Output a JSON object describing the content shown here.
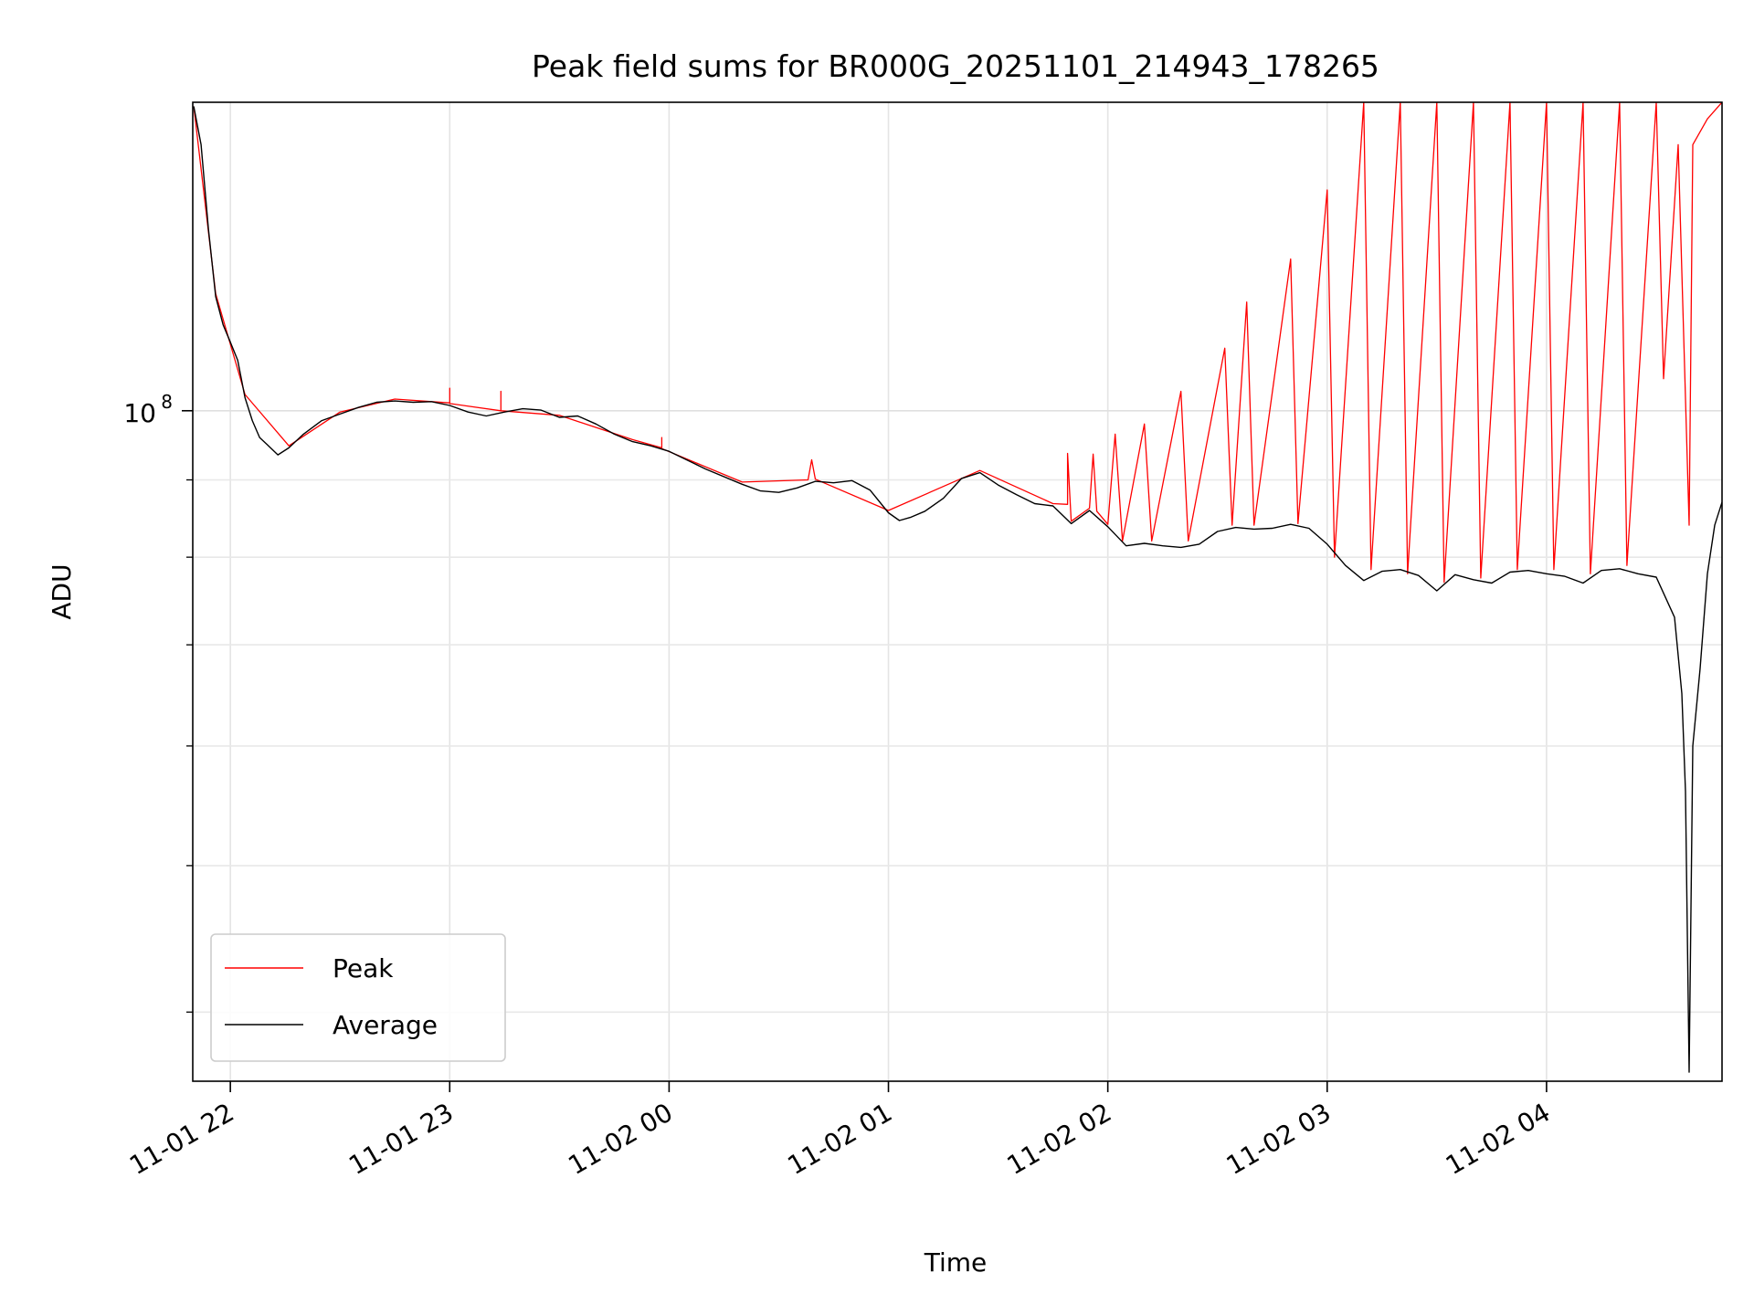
{
  "chart_data": {
    "type": "line",
    "title": "Peak field sums for BR000G_20251101_214943_178265",
    "xlabel": "Time",
    "ylabel": "ADU",
    "yscale": "log",
    "grid": true,
    "legend_position": "lower-left",
    "xlim": [
      "2025-11-01 21:49:43",
      "2025-11-02 04:48:00"
    ],
    "ylim": [
      36000000,
      160000000
    ],
    "xticks": [
      {
        "t": "2025-11-01 22:00",
        "label": "11-01 22"
      },
      {
        "t": "2025-11-01 23:00",
        "label": "11-01 23"
      },
      {
        "t": "2025-11-02 00:00",
        "label": "11-02 00"
      },
      {
        "t": "2025-11-02 01:00",
        "label": "11-02 01"
      },
      {
        "t": "2025-11-02 02:00",
        "label": "11-02 02"
      },
      {
        "t": "2025-11-02 03:00",
        "label": "11-02 03"
      },
      {
        "t": "2025-11-02 04:00",
        "label": "11-02 04"
      }
    ],
    "ytick_major": {
      "value": 100000000,
      "label": "10",
      "exponent": "8"
    },
    "ytick_minor": [
      40000000,
      50000000,
      60000000,
      70000000,
      80000000,
      90000000
    ],
    "series": [
      {
        "name": "Average",
        "color": "#000000",
        "points": [
          [
            "2025-11-01 21:50",
            159000000
          ],
          [
            "2025-11-01 21:52",
            150000000
          ],
          [
            "2025-11-01 21:54",
            132000000
          ],
          [
            "2025-11-01 21:56",
            119000000
          ],
          [
            "2025-11-01 21:58",
            114000000
          ],
          [
            "2025-11-01 22:00",
            111000000
          ],
          [
            "2025-11-01 22:02",
            108000000
          ],
          [
            "2025-11-01 22:04",
            102000000
          ],
          [
            "2025-11-01 22:06",
            98500000
          ],
          [
            "2025-11-01 22:08",
            96000000
          ],
          [
            "2025-11-01 22:10",
            95000000
          ],
          [
            "2025-11-01 22:13",
            93500000
          ],
          [
            "2025-11-01 22:16",
            94500000
          ],
          [
            "2025-11-01 22:20",
            96500000
          ],
          [
            "2025-11-01 22:25",
            98500000
          ],
          [
            "2025-11-01 22:30",
            99500000
          ],
          [
            "2025-11-01 22:35",
            100500000
          ],
          [
            "2025-11-01 22:40",
            101300000
          ],
          [
            "2025-11-01 22:45",
            101500000
          ],
          [
            "2025-11-01 22:50",
            101300000
          ],
          [
            "2025-11-01 22:55",
            101400000
          ],
          [
            "2025-11-01 23:00",
            100800000
          ],
          [
            "2025-11-01 23:05",
            99800000
          ],
          [
            "2025-11-01 23:10",
            99200000
          ],
          [
            "2025-11-01 23:15",
            99800000
          ],
          [
            "2025-11-01 23:20",
            100300000
          ],
          [
            "2025-11-01 23:25",
            100100000
          ],
          [
            "2025-11-01 23:30",
            99000000
          ],
          [
            "2025-11-01 23:35",
            99200000
          ],
          [
            "2025-11-01 23:40",
            98000000
          ],
          [
            "2025-11-01 23:45",
            96500000
          ],
          [
            "2025-11-01 23:50",
            95400000
          ],
          [
            "2025-11-01 23:55",
            94800000
          ],
          [
            "2025-11-02 00:00",
            94000000
          ],
          [
            "2025-11-02 00:10",
            91500000
          ],
          [
            "2025-11-02 00:20",
            89400000
          ],
          [
            "2025-11-02 00:25",
            88500000
          ],
          [
            "2025-11-02 00:30",
            88300000
          ],
          [
            "2025-11-02 00:35",
            88900000
          ],
          [
            "2025-11-02 00:40",
            89800000
          ],
          [
            "2025-11-02 00:45",
            89600000
          ],
          [
            "2025-11-02 00:50",
            89900000
          ],
          [
            "2025-11-02 00:55",
            88600000
          ],
          [
            "2025-11-02 01:00",
            85600000
          ],
          [
            "2025-11-02 01:03",
            84600000
          ],
          [
            "2025-11-02 01:06",
            85000000
          ],
          [
            "2025-11-02 01:10",
            85800000
          ],
          [
            "2025-11-02 01:15",
            87500000
          ],
          [
            "2025-11-02 01:20",
            90200000
          ],
          [
            "2025-11-02 01:25",
            91000000
          ],
          [
            "2025-11-02 01:30",
            89300000
          ],
          [
            "2025-11-02 01:35",
            88000000
          ],
          [
            "2025-11-02 01:40",
            86800000
          ],
          [
            "2025-11-02 01:45",
            86500000
          ],
          [
            "2025-11-02 01:50",
            84200000
          ],
          [
            "2025-11-02 01:55",
            85900000
          ],
          [
            "2025-11-02 02:00",
            83800000
          ],
          [
            "2025-11-02 02:05",
            81400000
          ],
          [
            "2025-11-02 02:10",
            81700000
          ],
          [
            "2025-11-02 02:15",
            81400000
          ],
          [
            "2025-11-02 02:20",
            81200000
          ],
          [
            "2025-11-02 02:25",
            81600000
          ],
          [
            "2025-11-02 02:30",
            83200000
          ],
          [
            "2025-11-02 02:35",
            83700000
          ],
          [
            "2025-11-02 02:40",
            83500000
          ],
          [
            "2025-11-02 02:45",
            83600000
          ],
          [
            "2025-11-02 02:50",
            84100000
          ],
          [
            "2025-11-02 02:55",
            83600000
          ],
          [
            "2025-11-02 03:00",
            81600000
          ],
          [
            "2025-11-02 03:05",
            79000000
          ],
          [
            "2025-11-02 03:10",
            77200000
          ],
          [
            "2025-11-02 03:15",
            78300000
          ],
          [
            "2025-11-02 03:20",
            78500000
          ],
          [
            "2025-11-02 03:25",
            77800000
          ],
          [
            "2025-11-02 03:30",
            76000000
          ],
          [
            "2025-11-02 03:35",
            77900000
          ],
          [
            "2025-11-02 03:40",
            77300000
          ],
          [
            "2025-11-02 03:45",
            76900000
          ],
          [
            "2025-11-02 03:50",
            78200000
          ],
          [
            "2025-11-02 03:55",
            78400000
          ],
          [
            "2025-11-02 04:00",
            78000000
          ],
          [
            "2025-11-02 04:05",
            77700000
          ],
          [
            "2025-11-02 04:10",
            76900000
          ],
          [
            "2025-11-02 04:15",
            78400000
          ],
          [
            "2025-11-02 04:20",
            78600000
          ],
          [
            "2025-11-02 04:25",
            78000000
          ],
          [
            "2025-11-02 04:30",
            77600000
          ],
          [
            "2025-11-02 04:35",
            73000000
          ],
          [
            "2025-11-02 04:37",
            65000000
          ],
          [
            "2025-11-02 04:38",
            56000000
          ],
          [
            "2025-11-02 04:39",
            36500000
          ],
          [
            "2025-11-02 04:40",
            60000000
          ],
          [
            "2025-11-02 04:42",
            67500000
          ],
          [
            "2025-11-02 04:44",
            78000000
          ],
          [
            "2025-11-02 04:46",
            84000000
          ],
          [
            "2025-11-02 04:48",
            87000000
          ]
        ]
      },
      {
        "name": "Peak",
        "color": "#ff0000",
        "points": [
          [
            "2025-11-01 21:50",
            159000000
          ],
          [
            "2025-11-01 21:56",
            119500000
          ],
          [
            "2025-11-01 22:04",
            102500000
          ],
          [
            "2025-11-01 22:16",
            94800000
          ],
          [
            "2025-11-01 22:30",
            99800000
          ],
          [
            "2025-11-01 22:45",
            101800000
          ],
          [
            "2025-11-01 23:00",
            101200000
          ],
          [
            "2025-11-01 23:00",
            103500000
          ],
          [
            "2025-11-01 23:00",
            101100000
          ],
          [
            "2025-11-01 23:14",
            100000000
          ],
          [
            "2025-11-01 23:14",
            103000000
          ],
          [
            "2025-11-01 23:14",
            100000000
          ],
          [
            "2025-11-01 23:30",
            99300000
          ],
          [
            "2025-11-01 23:50",
            95700000
          ],
          [
            "2025-11-01 23:58",
            94500000
          ],
          [
            "2025-11-01 23:58",
            96000000
          ],
          [
            "2025-11-01 23:58",
            94400000
          ],
          [
            "2025-11-02 00:20",
            89700000
          ],
          [
            "2025-11-02 00:38",
            90000000
          ],
          [
            "2025-11-02 00:39",
            92800000
          ],
          [
            "2025-11-02 00:40",
            90100000
          ],
          [
            "2025-11-02 01:00",
            85900000
          ],
          [
            "2025-11-02 01:25",
            91300000
          ],
          [
            "2025-11-02 01:45",
            86800000
          ],
          [
            "2025-11-02 01:49",
            86700000
          ],
          [
            "2025-11-02 01:49",
            93700000
          ],
          [
            "2025-11-02 01:50",
            84500000
          ],
          [
            "2025-11-02 01:55",
            86200000
          ],
          [
            "2025-11-02 01:56",
            93600000
          ],
          [
            "2025-11-02 01:57",
            85800000
          ],
          [
            "2025-11-02 02:00",
            84100000
          ],
          [
            "2025-11-02 02:02",
            96500000
          ],
          [
            "2025-11-02 02:04",
            82000000
          ],
          [
            "2025-11-02 02:10",
            98000000
          ],
          [
            "2025-11-02 02:12",
            82000000
          ],
          [
            "2025-11-02 02:20",
            103000000
          ],
          [
            "2025-11-02 02:22",
            82000000
          ],
          [
            "2025-11-02 02:32",
            110000000
          ],
          [
            "2025-11-02 02:34",
            84000000
          ],
          [
            "2025-11-02 02:38",
            118000000
          ],
          [
            "2025-11-02 02:40",
            84000000
          ],
          [
            "2025-11-02 02:50",
            126000000
          ],
          [
            "2025-11-02 02:52",
            84200000
          ],
          [
            "2025-11-02 03:00",
            140000000
          ],
          [
            "2025-11-02 03:02",
            80000000
          ],
          [
            "2025-11-02 03:10",
            160000000
          ],
          [
            "2025-11-02 03:12",
            78500000
          ],
          [
            "2025-11-02 03:20",
            160000000
          ],
          [
            "2025-11-02 03:22",
            78000000
          ],
          [
            "2025-11-02 03:30",
            160000000
          ],
          [
            "2025-11-02 03:32",
            77000000
          ],
          [
            "2025-11-02 03:40",
            160000000
          ],
          [
            "2025-11-02 03:42",
            77500000
          ],
          [
            "2025-11-02 03:50",
            160000000
          ],
          [
            "2025-11-02 03:52",
            78500000
          ],
          [
            "2025-11-02 04:00",
            160000000
          ],
          [
            "2025-11-02 04:02",
            78500000
          ],
          [
            "2025-11-02 04:10",
            160000000
          ],
          [
            "2025-11-02 04:12",
            78000000
          ],
          [
            "2025-11-02 04:20",
            160000000
          ],
          [
            "2025-11-02 04:22",
            79000000
          ],
          [
            "2025-11-02 04:30",
            160000000
          ],
          [
            "2025-11-02 04:32",
            105000000
          ],
          [
            "2025-11-02 04:36",
            150000000
          ],
          [
            "2025-11-02 04:39",
            84000000
          ],
          [
            "2025-11-02 04:40",
            150000000
          ],
          [
            "2025-11-02 04:44",
            156000000
          ],
          [
            "2025-11-02 04:48",
            160000000
          ]
        ]
      }
    ]
  }
}
